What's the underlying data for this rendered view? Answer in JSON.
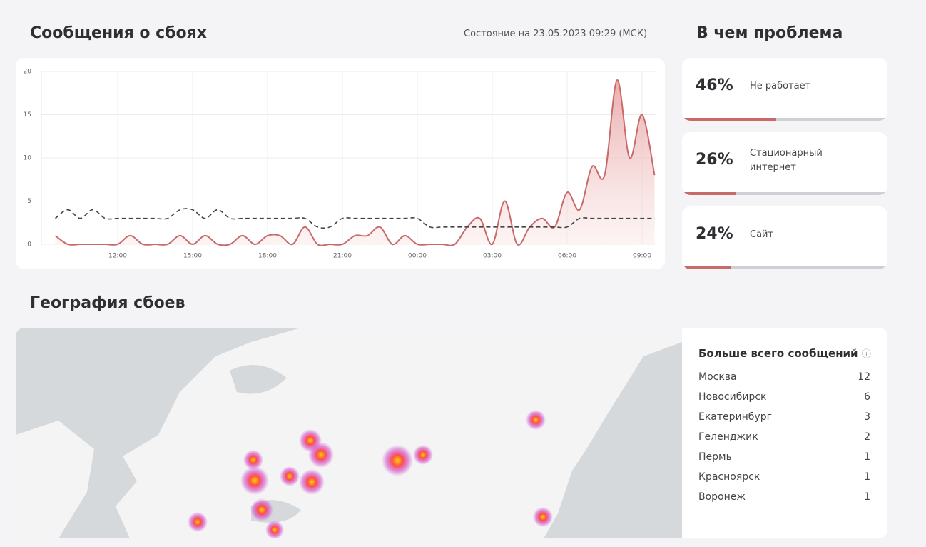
{
  "header": {
    "title": "Сообщения о сбоях",
    "status": "Состояние на 23.05.2023 09:29 (МСК)"
  },
  "chart_data": {
    "type": "line",
    "categories": [
      null,
      null,
      null,
      null,
      null,
      "12:00",
      null,
      null,
      null,
      null,
      null,
      "15:00",
      null,
      null,
      null,
      null,
      null,
      "18:00",
      null,
      null,
      null,
      null,
      null,
      "21:00",
      null,
      null,
      null,
      null,
      null,
      "00:00",
      null,
      null,
      null,
      null,
      null,
      "03:00",
      null,
      null,
      null,
      null,
      null,
      "06:00",
      null,
      null,
      null,
      null,
      null,
      "09:00",
      null
    ],
    "series": [
      {
        "color": "#c96a6a",
        "values": [
          1,
          0,
          0,
          0,
          0,
          0,
          1,
          0,
          0,
          0,
          1,
          0,
          1,
          0,
          0,
          1,
          0,
          1,
          1,
          0,
          2,
          0,
          0,
          0,
          1,
          1,
          2,
          0,
          1,
          0,
          0,
          0,
          0,
          2,
          3,
          0,
          5,
          0,
          2,
          3,
          2,
          6,
          4,
          9,
          8,
          19,
          10,
          15,
          8
        ]
      },
      {
        "color": "#444444",
        "values": [
          3,
          4,
          3,
          4,
          3,
          3,
          3,
          3,
          3,
          3,
          4,
          4,
          3,
          4,
          3,
          3,
          3,
          3,
          3,
          3,
          3,
          2,
          2,
          3,
          3,
          3,
          3,
          3,
          3,
          3,
          2,
          2,
          2,
          2,
          2,
          2,
          2,
          2,
          2,
          2,
          2,
          2,
          3,
          3,
          3,
          3,
          3,
          3,
          3
        ]
      }
    ],
    "ylim": [
      0,
      20
    ],
    "yticks": [
      0,
      5,
      10,
      15,
      20
    ],
    "grid": true
  },
  "problems": {
    "title": "В чем проблема",
    "items": [
      {
        "value": 46,
        "label": "46%",
        "name": "Не работает"
      },
      {
        "value": 26,
        "label": "26%",
        "name": "Стационарный интернет"
      },
      {
        "value": 24,
        "label": "24%",
        "name": "Сайт"
      }
    ]
  },
  "geo": {
    "title": "География сбоев",
    "list_title": "Больше всего сообщений",
    "cities": [
      {
        "name": "Москва",
        "count": 12
      },
      {
        "name": "Новосибирск",
        "count": 6
      },
      {
        "name": "Екатеринбург",
        "count": 3
      },
      {
        "name": "Геленджик",
        "count": 2
      },
      {
        "name": "Пермь",
        "count": 1
      },
      {
        "name": "Красноярск",
        "count": 1
      },
      {
        "name": "Воронеж",
        "count": 1
      }
    ]
  }
}
